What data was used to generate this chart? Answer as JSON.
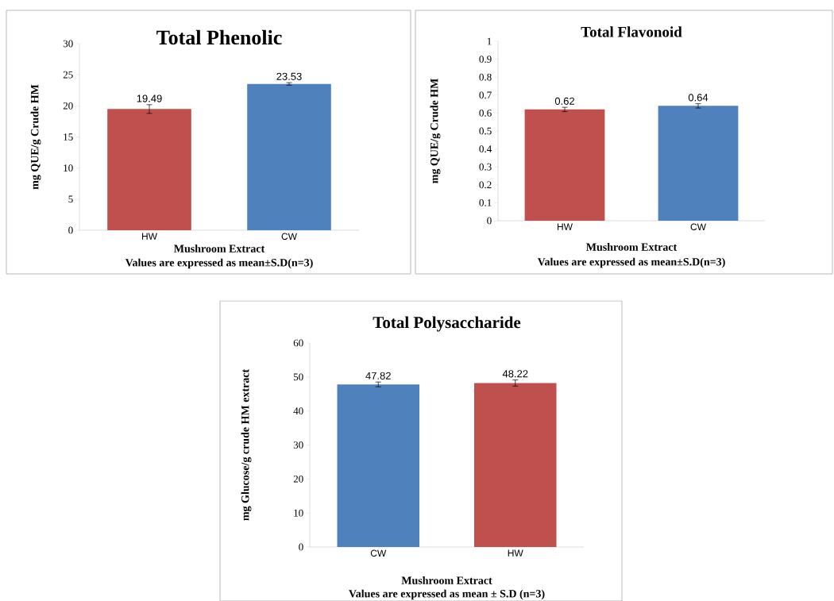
{
  "chart_data": [
    {
      "type": "bar",
      "title": "Total Phenolic",
      "xlabel": "Mushroom Extract",
      "ylabel": "mg QUE/g Crude HM",
      "annotations": [
        "Values are expressed as mean±S.D(n=3)"
      ],
      "categories": [
        "HW",
        "CW"
      ],
      "values": [
        19.49,
        23.53
      ],
      "errors": [
        0.7,
        0.2
      ],
      "colors": [
        "#c0504d",
        "#4f81bd"
      ],
      "ylim": [
        0,
        30
      ],
      "yticks": [
        0,
        5,
        10,
        15,
        20,
        25,
        30
      ],
      "data_labels": true
    },
    {
      "type": "bar",
      "title": "Total Flavonoid",
      "xlabel": "Mushroom Extract",
      "ylabel": "mg QUE/g Crude HM",
      "annotations": [
        "Values are expressed as mean±S.D(n=3)"
      ],
      "categories": [
        "HW",
        "CW"
      ],
      "values": [
        0.62,
        0.64
      ],
      "errors": [
        0.012,
        0.012
      ],
      "colors": [
        "#c0504d",
        "#4f81bd"
      ],
      "ylim": [
        0,
        1
      ],
      "yticks": [
        0,
        0.1,
        0.2,
        0.3,
        0.4,
        0.5,
        0.6,
        0.7,
        0.8,
        0.9,
        1
      ],
      "data_labels": true
    },
    {
      "type": "bar",
      "title": "Total Polysaccharide",
      "xlabel": "Mushroom Extract",
      "ylabel": "mg Glucose/g crude HM extract",
      "annotations": [
        "Values are expressed as mean ± S.D (n=3)"
      ],
      "categories": [
        "CW",
        "HW"
      ],
      "values": [
        47.82,
        48.22
      ],
      "errors": [
        0.7,
        0.9
      ],
      "colors": [
        "#4f81bd",
        "#c0504d"
      ],
      "ylim": [
        0,
        60
      ],
      "yticks": [
        0,
        10,
        20,
        30,
        40,
        50,
        60
      ],
      "data_labels": true
    }
  ]
}
